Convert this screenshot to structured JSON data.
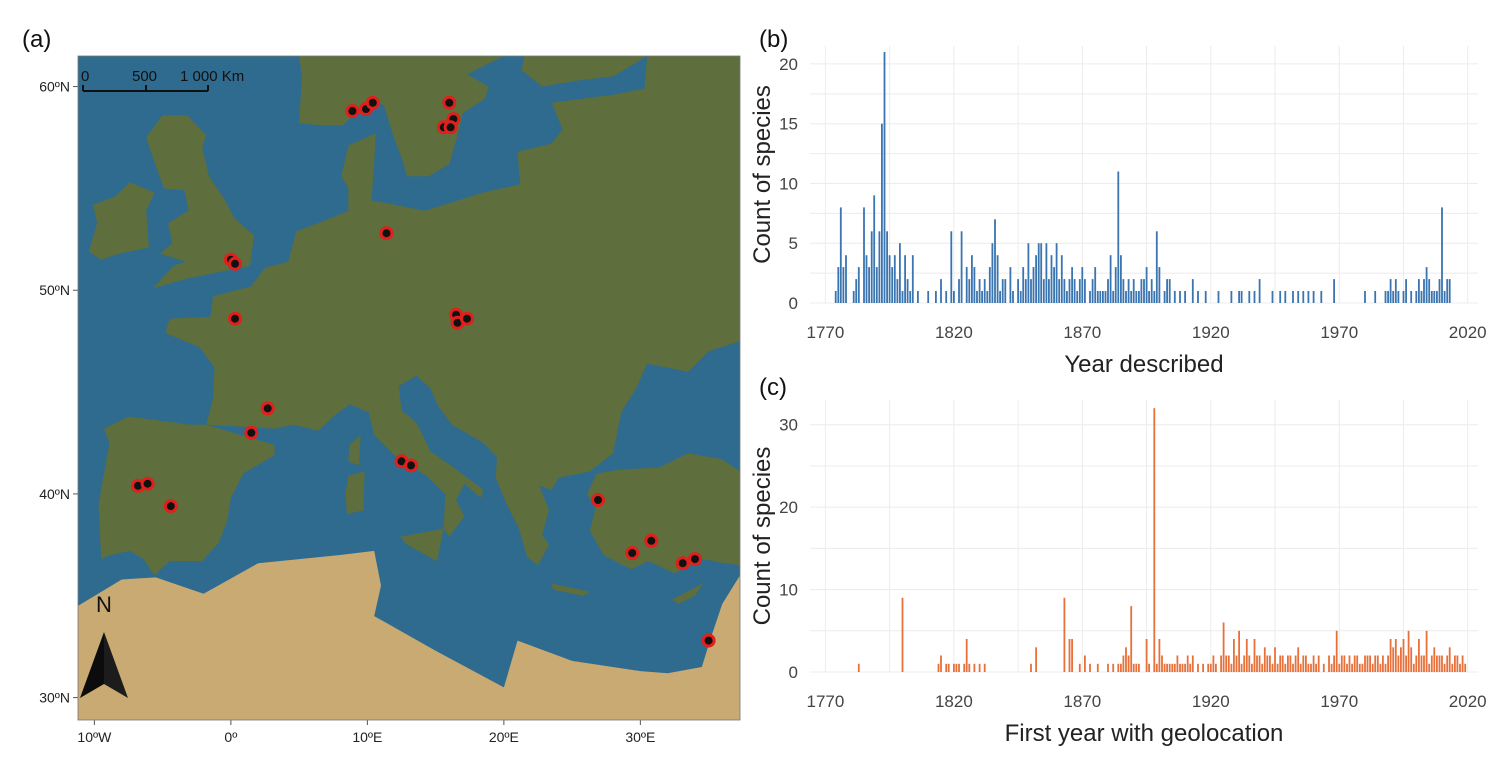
{
  "panels": {
    "a": "(a)",
    "b": "(b)",
    "c": "(c)"
  },
  "map": {
    "scale_labels": [
      "0",
      "500",
      "1 000 Km"
    ],
    "north_label": "N",
    "lat_ticks": [
      {
        "label": "60ºN",
        "lat": 60
      },
      {
        "label": "50ºN",
        "lat": 50
      },
      {
        "label": "40ºN",
        "lat": 40
      },
      {
        "label": "30ºN",
        "lat": 30
      }
    ],
    "lon_ticks": [
      {
        "label": "10ºW",
        "lon": -10
      },
      {
        "label": "0º",
        "lon": 0
      },
      {
        "label": "10ºE",
        "lon": 10
      },
      {
        "label": "20ºE",
        "lon": 20
      },
      {
        "label": "30ºE",
        "lon": 30
      }
    ],
    "lon_range": [
      -11.2,
      37.3
    ],
    "lat_range": [
      28.9,
      61.5
    ],
    "colors": {
      "sea": "#2f6b8e",
      "land": "#5e6e3c",
      "desert": "#c9aa72",
      "point_fill": "#111111",
      "point_stroke": "#e0201c"
    },
    "points": [
      {
        "lon": 8.9,
        "lat": 58.8
      },
      {
        "lon": 9.9,
        "lat": 58.9
      },
      {
        "lon": 10.4,
        "lat": 59.2
      },
      {
        "lon": 16.0,
        "lat": 59.2
      },
      {
        "lon": 16.3,
        "lat": 58.4
      },
      {
        "lon": 15.6,
        "lat": 58.0
      },
      {
        "lon": 16.1,
        "lat": 58.0
      },
      {
        "lon": 11.4,
        "lat": 52.8
      },
      {
        "lon": 0.0,
        "lat": 51.5
      },
      {
        "lon": 0.3,
        "lat": 51.3
      },
      {
        "lon": 0.3,
        "lat": 48.6
      },
      {
        "lon": 16.5,
        "lat": 48.8
      },
      {
        "lon": 16.6,
        "lat": 48.4
      },
      {
        "lon": 17.3,
        "lat": 48.6
      },
      {
        "lon": 2.7,
        "lat": 44.2
      },
      {
        "lon": 1.5,
        "lat": 43.0
      },
      {
        "lon": 12.5,
        "lat": 41.6
      },
      {
        "lon": 13.2,
        "lat": 41.4
      },
      {
        "lon": -6.8,
        "lat": 40.4
      },
      {
        "lon": -6.1,
        "lat": 40.5
      },
      {
        "lon": -4.4,
        "lat": 39.4
      },
      {
        "lon": 26.9,
        "lat": 39.7
      },
      {
        "lon": 29.4,
        "lat": 37.1
      },
      {
        "lon": 30.8,
        "lat": 37.7
      },
      {
        "lon": 33.1,
        "lat": 36.6
      },
      {
        "lon": 34.0,
        "lat": 36.8
      },
      {
        "lon": 35.0,
        "lat": 32.8
      }
    ]
  },
  "chart_data": [
    {
      "type": "bar",
      "xlabel": "Year described",
      "ylabel": "Count of species",
      "xlim": [
        1764,
        2024
      ],
      "ylim": [
        0,
        21.5
      ],
      "xticks": [
        1770,
        1820,
        1870,
        1920,
        1970,
        2020
      ],
      "yticks": [
        0,
        5,
        10,
        15,
        20
      ],
      "grid": true,
      "color": "#3a75b0",
      "x": [
        1774,
        1775,
        1776,
        1777,
        1778,
        1781,
        1782,
        1783,
        1785,
        1786,
        1787,
        1788,
        1789,
        1790,
        1791,
        1792,
        1793,
        1794,
        1795,
        1796,
        1797,
        1798,
        1799,
        1800,
        1801,
        1802,
        1803,
        1804,
        1806,
        1810,
        1813,
        1815,
        1817,
        1819,
        1820,
        1822,
        1823,
        1825,
        1826,
        1827,
        1828,
        1829,
        1830,
        1831,
        1832,
        1833,
        1834,
        1835,
        1836,
        1837,
        1838,
        1839,
        1840,
        1842,
        1843,
        1845,
        1846,
        1847,
        1848,
        1849,
        1850,
        1851,
        1852,
        1853,
        1854,
        1855,
        1856,
        1857,
        1858,
        1859,
        1860,
        1861,
        1862,
        1863,
        1864,
        1865,
        1866,
        1867,
        1868,
        1869,
        1870,
        1871,
        1873,
        1874,
        1875,
        1876,
        1877,
        1878,
        1879,
        1880,
        1881,
        1882,
        1883,
        1884,
        1885,
        1886,
        1887,
        1888,
        1889,
        1890,
        1891,
        1892,
        1893,
        1894,
        1895,
        1896,
        1897,
        1898,
        1899,
        1900,
        1902,
        1903,
        1904,
        1906,
        1908,
        1910,
        1913,
        1915,
        1918,
        1923,
        1928,
        1931,
        1932,
        1935,
        1937,
        1939,
        1944,
        1947,
        1949,
        1952,
        1954,
        1956,
        1958,
        1960,
        1963,
        1968,
        1980,
        1984,
        1988,
        1989,
        1990,
        1991,
        1992,
        1993,
        1995,
        1996,
        1998,
        2000,
        2001,
        2002,
        2003,
        2004,
        2005,
        2006,
        2007,
        2008,
        2009,
        2010,
        2011,
        2012,
        2013
      ],
      "values": [
        1,
        3,
        8,
        3,
        4,
        1,
        2,
        3,
        8,
        4,
        3,
        6,
        9,
        3,
        6,
        15,
        21,
        6,
        4,
        3,
        4,
        2,
        5,
        1,
        4,
        2,
        1,
        4,
        1,
        1,
        1,
        2,
        1,
        6,
        1,
        2,
        6,
        3,
        2,
        4,
        3,
        1,
        2,
        1,
        2,
        1,
        3,
        5,
        7,
        4,
        1,
        2,
        2,
        3,
        1,
        2,
        1,
        3,
        2,
        5,
        2,
        3,
        4,
        5,
        5,
        2,
        5,
        2,
        4,
        3,
        5,
        2,
        4,
        2,
        1,
        2,
        3,
        2,
        1,
        2,
        3,
        2,
        1,
        2,
        3,
        1,
        1,
        1,
        1,
        2,
        4,
        1,
        3,
        11,
        4,
        2,
        1,
        2,
        1,
        2,
        1,
        1,
        2,
        2,
        3,
        1,
        2,
        1,
        6,
        3,
        1,
        2,
        2,
        1,
        1,
        1,
        2,
        1,
        1,
        1,
        1,
        1,
        1,
        1,
        1,
        2,
        1,
        1,
        1,
        1,
        1,
        1,
        1,
        1,
        1,
        2,
        1,
        1,
        1,
        1,
        2,
        1,
        2,
        1,
        1,
        2,
        1,
        1,
        2,
        1,
        2,
        3,
        2,
        1,
        1,
        1,
        2,
        8,
        1,
        2,
        2
      ]
    },
    {
      "type": "bar",
      "xlabel": "First year with geolocation",
      "ylabel": "Count of species",
      "xlim": [
        1764,
        2024
      ],
      "ylim": [
        0,
        33
      ],
      "xticks": [
        1770,
        1820,
        1870,
        1920,
        1970,
        2020
      ],
      "yticks": [
        0,
        10,
        20,
        30
      ],
      "grid": true,
      "color": "#e8703a",
      "x": [
        1783,
        1800,
        1814,
        1815,
        1817,
        1818,
        1820,
        1821,
        1822,
        1824,
        1825,
        1826,
        1828,
        1830,
        1832,
        1850,
        1852,
        1863,
        1865,
        1866,
        1869,
        1871,
        1873,
        1876,
        1880,
        1882,
        1884,
        1885,
        1886,
        1887,
        1888,
        1889,
        1890,
        1891,
        1892,
        1895,
        1896,
        1898,
        1899,
        1900,
        1901,
        1902,
        1903,
        1904,
        1905,
        1906,
        1907,
        1908,
        1909,
        1910,
        1911,
        1912,
        1913,
        1915,
        1917,
        1919,
        1920,
        1921,
        1922,
        1924,
        1925,
        1926,
        1927,
        1928,
        1929,
        1930,
        1931,
        1932,
        1933,
        1934,
        1935,
        1936,
        1937,
        1938,
        1939,
        1940,
        1941,
        1942,
        1943,
        1944,
        1945,
        1946,
        1947,
        1948,
        1949,
        1950,
        1951,
        1952,
        1953,
        1954,
        1955,
        1956,
        1957,
        1958,
        1959,
        1960,
        1961,
        1962,
        1964,
        1966,
        1967,
        1968,
        1969,
        1970,
        1971,
        1972,
        1973,
        1974,
        1975,
        1976,
        1977,
        1978,
        1979,
        1980,
        1981,
        1982,
        1983,
        1984,
        1985,
        1986,
        1987,
        1988,
        1989,
        1990,
        1991,
        1992,
        1993,
        1994,
        1995,
        1996,
        1997,
        1998,
        1999,
        2000,
        2001,
        2002,
        2003,
        2004,
        2005,
        2006,
        2007,
        2008,
        2009,
        2010,
        2011,
        2012,
        2013,
        2014,
        2015,
        2016,
        2017,
        2018,
        2019
      ],
      "values": [
        1,
        9,
        1,
        2,
        1,
        1,
        1,
        1,
        1,
        1,
        4,
        1,
        1,
        1,
        1,
        1,
        3,
        9,
        4,
        4,
        1,
        2,
        1,
        1,
        1,
        1,
        1,
        1,
        2,
        3,
        2,
        8,
        1,
        1,
        1,
        4,
        1,
        32,
        1,
        4,
        2,
        1,
        1,
        1,
        1,
        1,
        2,
        1,
        1,
        1,
        2,
        1,
        2,
        1,
        1,
        1,
        1,
        2,
        1,
        2,
        6,
        2,
        2,
        1,
        4,
        2,
        5,
        1,
        2,
        4,
        2,
        1,
        4,
        2,
        2,
        1,
        3,
        2,
        2,
        1,
        3,
        1,
        2,
        2,
        1,
        2,
        2,
        1,
        2,
        3,
        1,
        2,
        2,
        1,
        1,
        2,
        1,
        2,
        1,
        2,
        1,
        2,
        5,
        1,
        2,
        2,
        1,
        2,
        1,
        2,
        2,
        1,
        1,
        2,
        2,
        2,
        1,
        2,
        2,
        1,
        2,
        1,
        2,
        4,
        3,
        4,
        2,
        3,
        4,
        2,
        5,
        3,
        1,
        2,
        4,
        2,
        2,
        5,
        1,
        2,
        3,
        2,
        2,
        2,
        1,
        2,
        3,
        1,
        2,
        2,
        1,
        2,
        1
      ]
    }
  ]
}
